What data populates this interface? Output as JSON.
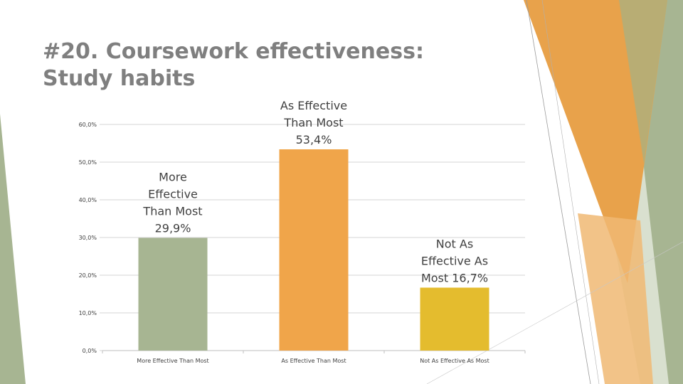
{
  "slide": {
    "title_line1": "#20. Coursework effectiveness:",
    "title_line2": "Study habits",
    "colors": {
      "title": "#7f7f7f",
      "deco_green": "#a7b592",
      "deco_orange": "#e8a24b",
      "deco_olive": "#b4ae78"
    }
  },
  "chart_data": {
    "type": "bar",
    "categories": [
      "More Effective Than Most",
      "As Effective Than Most",
      "Not As Effective As Most"
    ],
    "values": [
      29.9,
      53.4,
      16.7
    ],
    "data_labels": [
      [
        "More",
        "Effective",
        "Than Most",
        "29,9%"
      ],
      [
        "As Effective",
        "Than Most",
        "53,4%"
      ],
      [
        "Not As",
        "Effective As",
        "Most  16,7%"
      ]
    ],
    "colors": [
      "#a7b592",
      "#f0a54a",
      "#e4bc2e"
    ],
    "ylim": [
      0,
      60
    ],
    "yticks": [
      0,
      10,
      20,
      30,
      40,
      50,
      60
    ],
    "ytick_labels": [
      "0,0%",
      "10,0%",
      "20,0%",
      "30,0%",
      "40,0%",
      "50,0%",
      "60,0%"
    ],
    "grid": true
  }
}
